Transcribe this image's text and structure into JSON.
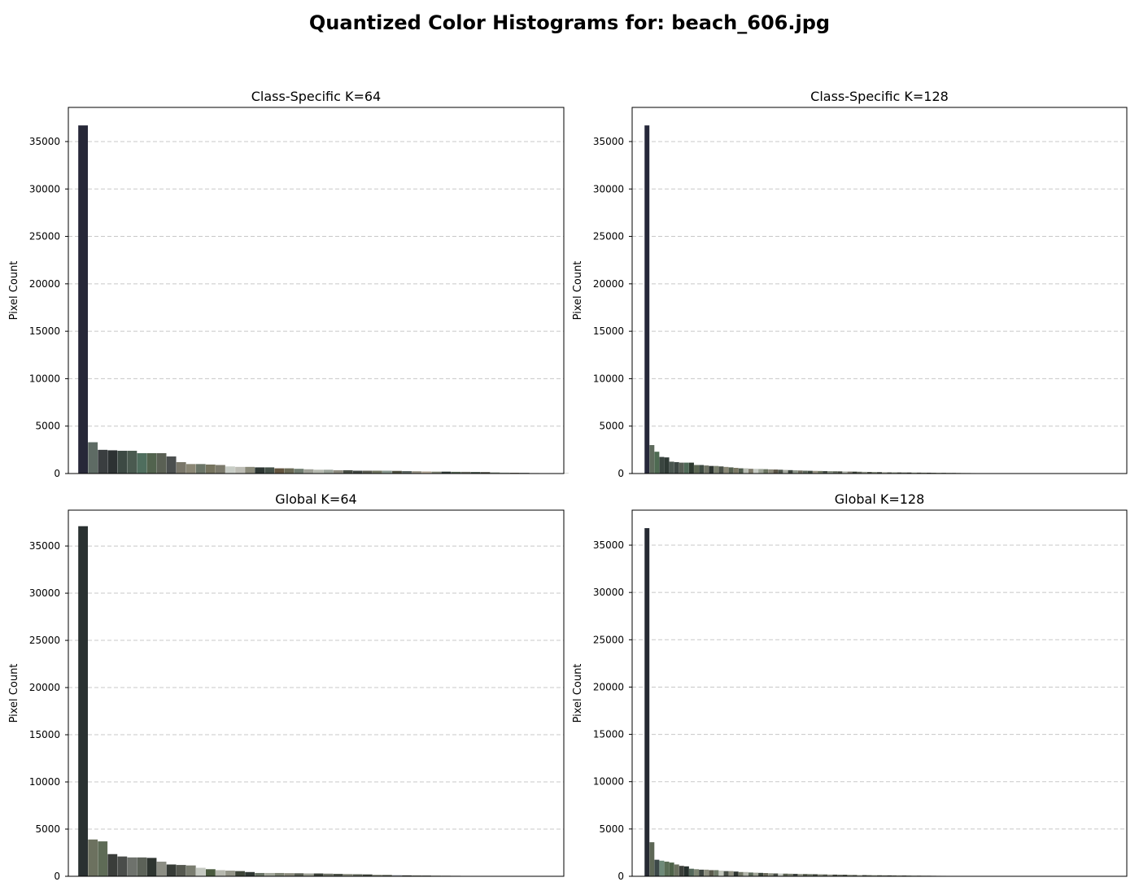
{
  "figure": {
    "title": "Quantized Color Histograms for: beach_606.jpg"
  },
  "chart_data": [
    {
      "type": "bar",
      "title": "Class-Specific K=64",
      "xlabel": "",
      "ylabel": "Pixel Count",
      "ylim": [
        0,
        38600
      ],
      "yticks": [
        0,
        5000,
        10000,
        15000,
        20000,
        25000,
        30000,
        35000
      ],
      "xlim": [
        -1.5,
        49
      ],
      "grid": "y-dashed",
      "values": [
        36700,
        3300,
        2500,
        2450,
        2400,
        2400,
        2150,
        2150,
        2150,
        1800,
        1200,
        1000,
        1000,
        950,
        900,
        750,
        700,
        700,
        650,
        650,
        550,
        550,
        500,
        450,
        400,
        400,
        350,
        350,
        300,
        300,
        300,
        300,
        280,
        260,
        240,
        220,
        200,
        200,
        180,
        180,
        160,
        150,
        120,
        100,
        80,
        70,
        50,
        40,
        30,
        20,
        15,
        10,
        8,
        6,
        5,
        4,
        3,
        2,
        2,
        1,
        1,
        1,
        1,
        1
      ],
      "colors": [
        "#272838",
        "#5e6b64",
        "#3a3e40",
        "#2d3233",
        "#3d4a44",
        "#4a5a50",
        "#4f6e5e",
        "#52634e",
        "#5a6054",
        "#4b4f4f",
        "#7a776a",
        "#8b8775",
        "#6b7567",
        "#76745f",
        "#7c7a6c",
        "#c8cdc6",
        "#bdbdb5",
        "#8a8a7a",
        "#2c3632",
        "#445048",
        "#62543e",
        "#6a6a55",
        "#707d70",
        "#a0a298",
        "#b7bbb1",
        "#9ba49a",
        "#8e8c80",
        "#484e45",
        "#3f4540",
        "#585a4f",
        "#6e735f",
        "#86968c",
        "#4d4f3f",
        "#5c6661",
        "#938f80",
        "#b4a998",
        "#7f8574",
        "#2f3a36",
        "#556554",
        "#6b6e64",
        "#3c4a40",
        "#44443a",
        "#808b7f",
        "#9aa6a0",
        "#615c4f",
        "#505a58",
        "#a8aea4",
        "#3a4338",
        "#727869",
        "#565e50",
        "#8c9384",
        "#494d43",
        "#686d5e",
        "#787e70",
        "#5f6656",
        "#404540",
        "#90988a",
        "#555b4e",
        "#6d7466",
        "#484c42",
        "#7d8576",
        "#5a6152",
        "#3e423b",
        "#82897a"
      ]
    },
    {
      "type": "bar",
      "title": "Class-Specific K=128",
      "xlabel": "",
      "ylabel": "Pixel Count",
      "ylim": [
        0,
        38600
      ],
      "yticks": [
        0,
        5000,
        10000,
        15000,
        20000,
        25000,
        30000,
        35000
      ],
      "xlim": [
        -3,
        97
      ],
      "grid": "y-dashed",
      "values": [
        36700,
        3000,
        2300,
        1750,
        1700,
        1250,
        1200,
        1150,
        1150,
        1150,
        900,
        900,
        850,
        800,
        800,
        750,
        700,
        650,
        600,
        550,
        550,
        500,
        500,
        480,
        460,
        440,
        420,
        400,
        380,
        360,
        340,
        320,
        300,
        290,
        280,
        270,
        260,
        250,
        240,
        230,
        220,
        210,
        200,
        190,
        180,
        170,
        160,
        150,
        140,
        130,
        125,
        120,
        115,
        110,
        105,
        100,
        95,
        90,
        85,
        80,
        75,
        70,
        65,
        60,
        55,
        50,
        45,
        40,
        35,
        30,
        28,
        26,
        24,
        22,
        20,
        18,
        16,
        14,
        12,
        10,
        9,
        8,
        7,
        6,
        5,
        4,
        3,
        3,
        2,
        2,
        2,
        1,
        1,
        1,
        1,
        1,
        1,
        1,
        1,
        1,
        1,
        1,
        1,
        1,
        1,
        1,
        1,
        1,
        1,
        1,
        1,
        1,
        1,
        1,
        1,
        1,
        1,
        1,
        1,
        1,
        1,
        1,
        1,
        1,
        1,
        1,
        1,
        1
      ],
      "colors": [
        "#26283a",
        "#5e6b5c",
        "#4e6a52",
        "#3a4540",
        "#2f3a35",
        "#4a5650",
        "#3d4744",
        "#565e55",
        "#4f6a58",
        "#2e3a30",
        "#5b6652",
        "#3e4b42",
        "#6f7365",
        "#2c3430",
        "#7a806e",
        "#4a5148",
        "#8a8876",
        "#556050",
        "#7a7864",
        "#4e5a4c",
        "#b8bcb2",
        "#7e7a6a",
        "#c7cbc4",
        "#9da496",
        "#6a7460",
        "#8b8a7a",
        "#5a5446",
        "#4c544a",
        "#a8aca2",
        "#3b433c",
        "#8d9689",
        "#6c6a5c",
        "#5d675b",
        "#3f4a3f",
        "#999484",
        "#707862",
        "#434b44",
        "#848c7e",
        "#61695c",
        "#4a4f44",
        "#b0b4aa",
        "#7d7a6e",
        "#384036",
        "#666c60",
        "#94998c",
        "#535a4e",
        "#7f8877",
        "#42483f",
        "#a3a698",
        "#5e6458",
        "#88907f",
        "#4d5347",
        "#6f766a",
        "#3c4139",
        "#9aa091",
        "#575d51",
        "#7c8272",
        "#464c42",
        "#6a7062",
        "#8e9484",
        "#52584c",
        "#747a6b",
        "#40453d",
        "#63695b",
        "#858b7b",
        "#4b5046",
        "#70766a",
        "#3d423a",
        "#5f6557",
        "#818777",
        "#484d43",
        "#6c7264",
        "#9a9f90",
        "#56594f",
        "#7a7f70",
        "#444a40",
        "#676d5f",
        "#898f7f",
        "#4f554a",
        "#72786a",
        "#3f443c",
        "#60665a",
        "#848a7a",
        "#4a4f46",
        "#6e7466",
        "#92988a",
        "#535949",
        "#777d6e",
        "#42473f",
        "#65695c",
        "#878d7d",
        "#4c5247",
        "#707668",
        "#3e433b",
        "#5e6456",
        "#828878",
        "#474c42",
        "#6a7062",
        "#8c9282",
        "#50564b",
        "#747a6c",
        "#40453c",
        "#62685a",
        "#868c7c",
        "#4b5046",
        "#6e7466",
        "#92988a",
        "#545a4e",
        "#787e6f",
        "#43483f",
        "#666c5e",
        "#8a9080",
        "#4e5449",
        "#727868",
        "#3f443b",
        "#606659",
        "#848a7b",
        "#494e44",
        "#6c7264",
        "#909686",
        "#52584d",
        "#767c6d",
        "#41463e",
        "#64695d",
        "#888e7e",
        "#4d5348",
        "#717769",
        "#3d423a"
      ]
    },
    {
      "type": "bar",
      "title": "Global K=64",
      "xlabel": "",
      "ylabel": "Pixel Count",
      "ylim": [
        0,
        38800
      ],
      "yticks": [
        0,
        5000,
        10000,
        15000,
        20000,
        25000,
        30000,
        35000
      ],
      "xlim": [
        -1.5,
        49
      ],
      "grid": "y-dashed",
      "values": [
        37100,
        3900,
        3700,
        2350,
        2100,
        2000,
        2000,
        1950,
        1550,
        1250,
        1200,
        1150,
        900,
        750,
        650,
        600,
        550,
        450,
        350,
        350,
        350,
        330,
        320,
        300,
        300,
        280,
        260,
        240,
        220,
        200,
        150,
        140,
        120,
        100,
        90,
        80,
        70,
        60,
        50,
        40,
        30,
        20,
        15,
        10,
        8,
        6,
        5,
        4,
        3,
        2,
        2,
        1,
        1,
        1,
        1,
        1,
        1,
        1,
        1,
        1,
        1,
        1,
        1,
        1
      ],
      "colors": [
        "#2a3131",
        "#6c715f",
        "#5e6b56",
        "#3a3d3a",
        "#4a4d4a",
        "#6e726c",
        "#5c6258",
        "#2e3530",
        "#8c8e84",
        "#363b36",
        "#55584f",
        "#7a7d70",
        "#c4c8c0",
        "#4a5a3e",
        "#b6b8ae",
        "#949588",
        "#3e4538",
        "#2f3733",
        "#6a7466",
        "#a4a89c",
        "#7e8474",
        "#8a8a7c",
        "#5a5f54",
        "#9c9f93",
        "#3a3f37",
        "#707468",
        "#4e544a",
        "#868a7c",
        "#62685c",
        "#444a40",
        "#7c8070",
        "#54594e",
        "#9096a0",
        "#3c4139",
        "#686d60",
        "#4b5046",
        "#7f8475",
        "#5c6256",
        "#40453c",
        "#73786b",
        "#50564b",
        "#8a8f80",
        "#464b42",
        "#6a7063",
        "#585e52",
        "#7e8476",
        "#42473e",
        "#646a5c",
        "#4e5349",
        "#767c6e",
        "#3e433a",
        "#5e6457",
        "#828878",
        "#484d43",
        "#6c7264",
        "#909686",
        "#52584c",
        "#767c6d",
        "#41463e",
        "#64695d",
        "#888e7e",
        "#4d5348",
        "#717769",
        "#3d423a"
      ]
    },
    {
      "type": "bar",
      "title": "Global K=128",
      "xlabel": "",
      "ylabel": "Pixel Count",
      "ylim": [
        0,
        38700
      ],
      "yticks": [
        0,
        5000,
        10000,
        15000,
        20000,
        25000,
        30000,
        35000
      ],
      "xlim": [
        -3,
        97
      ],
      "grid": "y-dashed",
      "values": [
        36800,
        3600,
        1750,
        1650,
        1550,
        1450,
        1250,
        1100,
        1050,
        800,
        750,
        700,
        700,
        650,
        650,
        600,
        550,
        550,
        500,
        450,
        450,
        400,
        380,
        360,
        340,
        320,
        300,
        290,
        280,
        270,
        260,
        250,
        240,
        230,
        220,
        210,
        200,
        190,
        180,
        170,
        160,
        150,
        140,
        130,
        125,
        120,
        115,
        110,
        105,
        100,
        95,
        90,
        85,
        80,
        75,
        70,
        65,
        60,
        55,
        50,
        45,
        40,
        35,
        30,
        28,
        26,
        24,
        22,
        20,
        18,
        16,
        14,
        12,
        10,
        9,
        8,
        7,
        6,
        5,
        4,
        3,
        3,
        2,
        2,
        2,
        1,
        1,
        1,
        1,
        1,
        1,
        1,
        1,
        1,
        1,
        1,
        1,
        1,
        1,
        1,
        1,
        1,
        1,
        1,
        1,
        1,
        1,
        1,
        1,
        1,
        1,
        1,
        1,
        1,
        1,
        1,
        1,
        1,
        1,
        1,
        1,
        1,
        1,
        1,
        1,
        1,
        1,
        1
      ],
      "colors": [
        "#262a33",
        "#5d6755",
        "#3c4848",
        "#6e8a78",
        "#5a6e56",
        "#4e6248",
        "#6a705e",
        "#3b3f3a",
        "#26302c",
        "#54685a",
        "#7c8472",
        "#3e4641",
        "#8a8c7c",
        "#5a5a4c",
        "#6f7a68",
        "#c2c6bc",
        "#4a5048",
        "#8e8f80",
        "#2f3632",
        "#747868",
        "#b2b5aa",
        "#5e6a5a",
        "#a0a496",
        "#3a443a",
        "#6a6a5c",
        "#8c9082",
        "#484e46",
        "#c8ccc4",
        "#5a6252",
        "#7a7e70",
        "#3e4440",
        "#969a8c",
        "#505648",
        "#6c7464",
        "#42483e",
        "#888c7e",
        "#5e6458",
        "#9c9e92",
        "#4a4e44",
        "#70766a",
        "#3c4238",
        "#828878",
        "#5a5f52",
        "#a6aa9c",
        "#464b42",
        "#6a7062",
        "#8e9484",
        "#52584c",
        "#767c6d",
        "#40453c",
        "#62685a",
        "#868c7c",
        "#4b5046",
        "#6e7466",
        "#92988a",
        "#545a4e",
        "#787e6f",
        "#43483f",
        "#666c5e",
        "#8a9080",
        "#4e5449",
        "#727868",
        "#3f443b",
        "#606659",
        "#848a7b",
        "#494e44",
        "#6c7264",
        "#909686",
        "#52584d",
        "#767c6d",
        "#41463e",
        "#64695d",
        "#888e7e",
        "#4d5348",
        "#717769",
        "#3d423a",
        "#5f6557",
        "#818777",
        "#484d43",
        "#6c7264",
        "#9a9f90",
        "#56594f",
        "#7a7f70",
        "#444a40",
        "#676d5f",
        "#898f7f",
        "#4f554a",
        "#72786a",
        "#3f443c",
        "#60665a",
        "#848a7a",
        "#4a4f46",
        "#6e7466",
        "#92988a",
        "#535949",
        "#777d6e",
        "#42473f",
        "#65695c",
        "#878d7d",
        "#4c5247",
        "#707668",
        "#3e433b",
        "#5e6456",
        "#828878",
        "#474c42",
        "#6a7062",
        "#8c9282",
        "#50564b",
        "#747a6c",
        "#40453c",
        "#62685a",
        "#868c7c",
        "#4b5046",
        "#6e7466",
        "#92988a",
        "#545a4e",
        "#787e6f",
        "#43483f",
        "#666c5e",
        "#8a9080",
        "#4e5449",
        "#727868",
        "#3f443b",
        "#606659",
        "#848a7b",
        "#494e44",
        "#6c7264",
        "#909686"
      ]
    }
  ]
}
